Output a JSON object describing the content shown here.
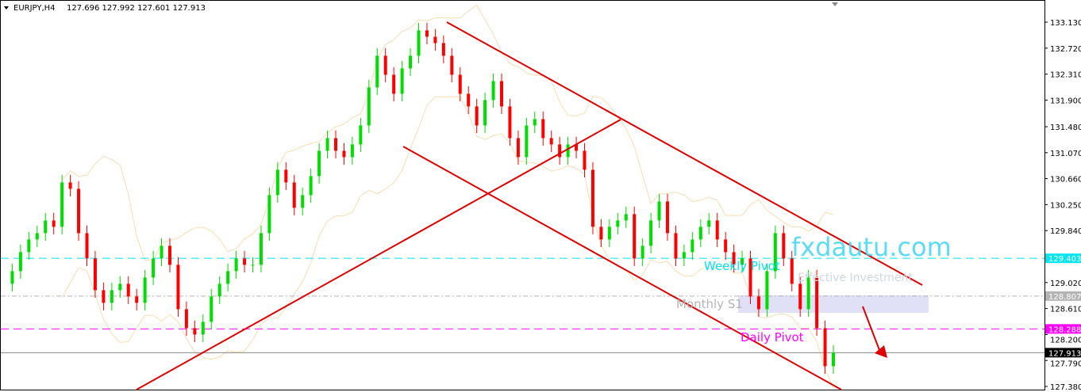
{
  "header": {
    "symbol": "EURJPY,H4",
    "ohlc": "127.696 127.992 127.601 127.913"
  },
  "chart_data": {
    "type": "candlestick",
    "ylim": [
      127.35,
      133.2
    ],
    "yticks": [
      "133.130",
      "132.720",
      "132.310",
      "131.900",
      "131.480",
      "131.070",
      "130.660",
      "130.250",
      "129.840",
      "129.020",
      "128.610",
      "128.200",
      "127.790",
      "127.380"
    ],
    "closes": [
      129.0,
      129.2,
      129.5,
      129.7,
      129.8,
      130.0,
      129.9,
      130.6,
      130.5,
      129.8,
      129.4,
      128.9,
      128.7,
      128.9,
      129.0,
      128.8,
      128.7,
      129.1,
      129.4,
      129.6,
      129.3,
      128.6,
      128.3,
      128.2,
      128.4,
      128.8,
      129.0,
      129.2,
      129.4,
      129.3,
      129.3,
      129.8,
      130.4,
      130.8,
      130.6,
      130.2,
      130.4,
      130.7,
      131.1,
      131.3,
      131.1,
      131.0,
      131.2,
      131.5,
      132.1,
      132.6,
      132.3,
      132.0,
      132.4,
      132.6,
      133.0,
      132.9,
      132.8,
      132.6,
      132.3,
      132.0,
      131.8,
      131.5,
      131.9,
      132.2,
      131.8,
      131.3,
      131.0,
      131.5,
      131.6,
      131.3,
      131.2,
      131.0,
      131.2,
      131.1,
      130.8,
      129.9,
      129.7,
      129.9,
      130.0,
      130.1,
      129.4,
      129.6,
      130.0,
      130.3,
      129.8,
      129.4,
      129.5,
      129.7,
      129.9,
      130.0,
      129.7,
      129.5,
      129.3,
      129.4,
      128.8,
      128.6,
      129.2,
      129.8,
      129.4,
      129.0,
      128.6,
      129.1,
      128.3,
      127.7,
      127.913
    ],
    "levels": [
      {
        "name": "Weekly Pivot",
        "value": 129.403,
        "label": "129.403",
        "color": "#00e5ee",
        "style": "dashed"
      },
      {
        "name": "Monthly S1",
        "value": 128.807,
        "label": "128.807",
        "color": "#b4b4b4",
        "style": "dashdot"
      },
      {
        "name": "Daily Pivot",
        "value": 128.288,
        "label": "128.288",
        "color": "#ff00ff",
        "style": "dashed"
      },
      {
        "name": "",
        "value": 127.913,
        "label": "127.913",
        "color": "#000000",
        "style": "solid"
      }
    ],
    "colors": {
      "bull": "#00dd00",
      "bear": "#ff0000",
      "trendline": "#e00000",
      "bands": "#f5deb3",
      "zone": "#e0e0f6"
    }
  },
  "annotations": {
    "weekly": "Weekly Pivot",
    "monthly": "Monthly S1",
    "daily": "Daily Pivot"
  },
  "watermark": {
    "brand": "fxdautu.com",
    "tagline": "Effective Investment"
  }
}
